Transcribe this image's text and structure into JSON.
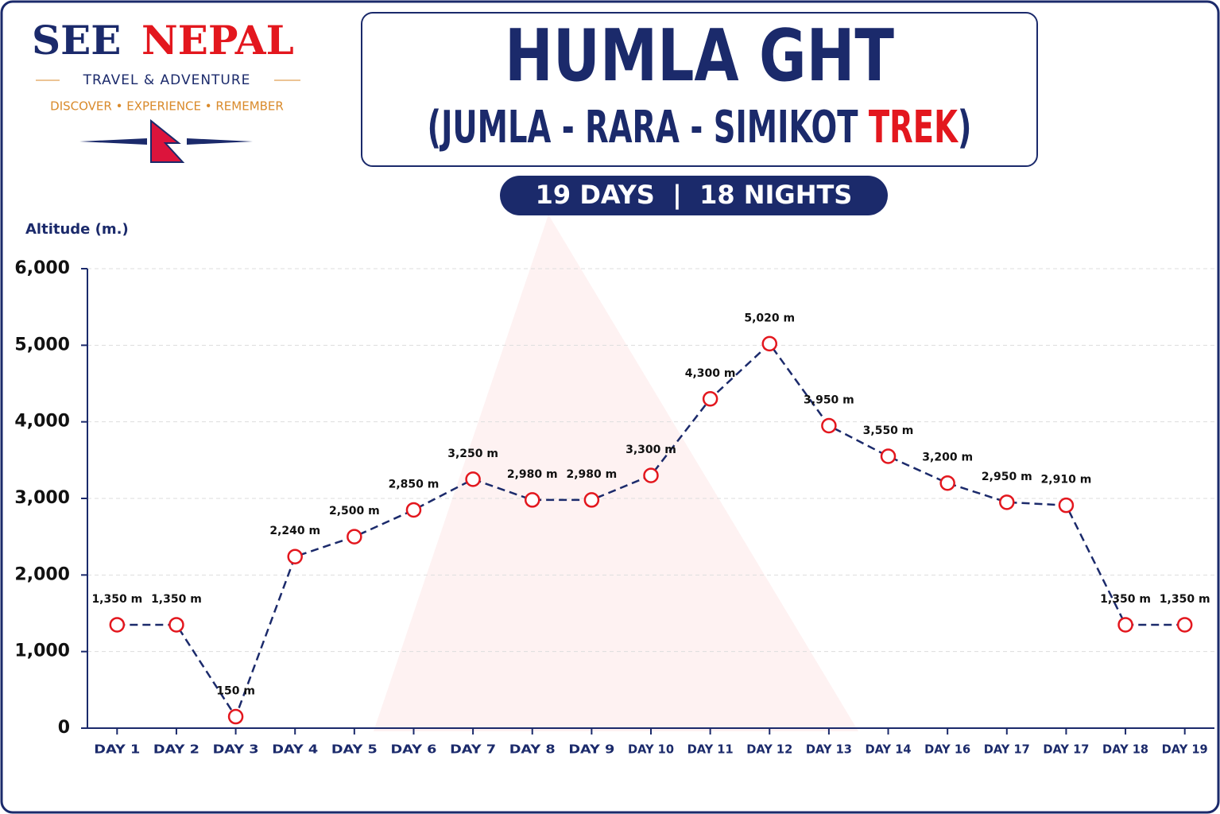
{
  "logo": {
    "brand": [
      "SEE",
      "NEPAL"
    ],
    "tagline": "TRAVEL & ADVENTURE",
    "motto": "DISCOVER • EXPERIENCE • REMEMBER"
  },
  "title": "HUMLA GHT",
  "subtitle": [
    "(JUMLA - RARA - SIMIKOT",
    "TREK",
    ")"
  ],
  "duration": "19 DAYS  |  18 NIGHTS",
  "chart_data": {
    "type": "line",
    "y_label": "Altitude (m.)",
    "categories": [
      "DAY 1",
      "DAY 2",
      "DAY 3",
      "DAY 4",
      "DAY 5",
      "DAY 6",
      "DAY 7",
      "DAY 8",
      "DAY 9",
      "DAY 10",
      "DAY 11",
      "DAY 12",
      "DAY 13",
      "DAY 14",
      "DAY 16",
      "DAY 17",
      "DAY 17",
      "DAY 18",
      "DAY 19"
    ],
    "values": [
      1350,
      1350,
      150,
      2240,
      2500,
      2850,
      3250,
      2980,
      2980,
      3300,
      4300,
      5020,
      3950,
      3550,
      3200,
      2950,
      2910,
      1350,
      1350
    ],
    "value_labels": [
      "1,350 m",
      "1,350 m",
      "150 m",
      "2,240 m",
      "2,500 m",
      "2,850 m",
      "3,250 m",
      "2,980 m",
      "2,980 m",
      "3,300 m",
      "4,300 m",
      "5,020 m",
      "3,950 m",
      "3,550 m",
      "3,200 m",
      "2,950 m",
      "2,910 m",
      "1,350 m",
      "1,350 m"
    ],
    "color": "#1b2a6b",
    "marker_color": "#e3171e",
    "ylim": [
      0,
      6000
    ],
    "yticks": [
      0,
      {
        "value": 1000,
        "label": "1,000"
      },
      {
        "value": 2000,
        "label": "2,000"
      },
      {
        "value": 3000,
        "label": "3,000"
      },
      {
        "value": 4000,
        "label": "4,000"
      },
      {
        "value": 5000,
        "label": "5,000"
      },
      {
        "value": 6000,
        "label": "6,000"
      }
    ],
    "grid": true
  }
}
